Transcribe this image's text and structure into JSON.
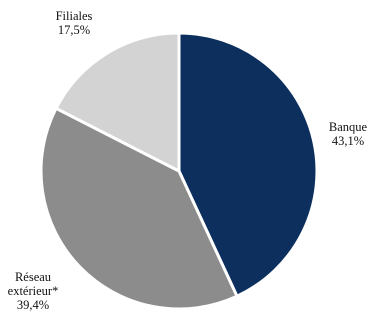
{
  "chart_data": {
    "type": "pie",
    "title": "",
    "start": "top, clockwise",
    "slices": [
      {
        "label_lines": [
          "Banque"
        ],
        "value": 43.1,
        "value_text": "43,1%",
        "color": "#0c2f5e"
      },
      {
        "label_lines": [
          "Réseau",
          "extérieur*"
        ],
        "value": 39.4,
        "value_text": "39,4%",
        "color": "#8c8c8c"
      },
      {
        "label_lines": [
          "Filiales"
        ],
        "value": 17.5,
        "value_text": "17,5%",
        "color": "#d3d3d3"
      }
    ]
  }
}
